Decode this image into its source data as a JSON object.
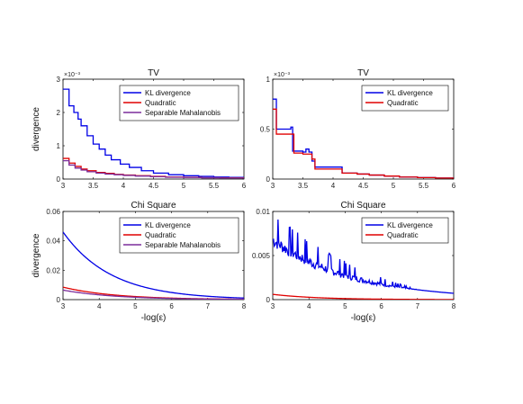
{
  "chart_data": [
    {
      "type": "line",
      "title": "TV",
      "ylabel": "divergence",
      "xlabel": "",
      "multiplier": "×10⁻³",
      "xlim": [
        3,
        6
      ],
      "ylim": [
        0,
        3
      ],
      "xticks": [
        "3",
        "3.5",
        "4",
        "4.5",
        "5",
        "5.5",
        "6"
      ],
      "yticks": [
        "0",
        "1",
        "2",
        "3"
      ],
      "legend": "top-right",
      "series": [
        {
          "name": "KL divergence",
          "color": "#0000e6",
          "step": true,
          "x": [
            3.0,
            3.1,
            3.18,
            3.25,
            3.3,
            3.4,
            3.5,
            3.6,
            3.7,
            3.8,
            3.95,
            4.1,
            4.3,
            4.5,
            4.75,
            5.0,
            5.25,
            5.5,
            5.75,
            6.0
          ],
          "y": [
            2.7,
            2.2,
            2.0,
            1.8,
            1.6,
            1.3,
            1.05,
            0.9,
            0.72,
            0.58,
            0.45,
            0.35,
            0.25,
            0.18,
            0.13,
            0.1,
            0.08,
            0.06,
            0.05,
            0.04
          ]
        },
        {
          "name": "Quadratic",
          "color": "#e00000",
          "step": true,
          "x": [
            3.0,
            3.1,
            3.2,
            3.3,
            3.4,
            3.55,
            3.7,
            3.85,
            4.0,
            4.2,
            4.45,
            4.7,
            5.0,
            5.3,
            5.6,
            6.0
          ],
          "y": [
            0.62,
            0.48,
            0.38,
            0.3,
            0.25,
            0.2,
            0.17,
            0.14,
            0.12,
            0.1,
            0.08,
            0.06,
            0.05,
            0.04,
            0.035,
            0.03
          ]
        },
        {
          "name": "Separable Mahalanobis",
          "color": "#7b2d9b",
          "step": true,
          "x": [
            3.0,
            3.1,
            3.2,
            3.3,
            3.4,
            3.55,
            3.7,
            3.85,
            4.0,
            4.2,
            4.45,
            4.7,
            5.0,
            5.3,
            5.6,
            6.0
          ],
          "y": [
            0.55,
            0.42,
            0.33,
            0.27,
            0.22,
            0.18,
            0.15,
            0.13,
            0.11,
            0.09,
            0.07,
            0.055,
            0.045,
            0.035,
            0.03,
            0.025
          ]
        }
      ]
    },
    {
      "type": "line",
      "title": "TV",
      "ylabel": "",
      "xlabel": "",
      "multiplier": "×10⁻³",
      "xlim": [
        3,
        6
      ],
      "ylim": [
        0,
        1
      ],
      "xticks": [
        "3",
        "3.5",
        "4",
        "4.5",
        "5",
        "5.5",
        "6"
      ],
      "yticks": [
        "0",
        "0.5",
        "1"
      ],
      "legend": "top-right",
      "series": [
        {
          "name": "KL divergence",
          "color": "#0000e6",
          "step": true,
          "x": [
            3.0,
            3.06,
            3.3,
            3.33,
            3.5,
            3.55,
            3.6,
            3.65,
            3.7,
            3.9,
            4.1,
            4.15,
            4.4,
            4.6,
            4.85,
            5.1,
            5.4,
            5.7,
            6.0
          ],
          "y": [
            0.8,
            0.5,
            0.52,
            0.28,
            0.27,
            0.3,
            0.27,
            0.18,
            0.12,
            0.12,
            0.12,
            0.06,
            0.05,
            0.04,
            0.03,
            0.02,
            0.015,
            0.01,
            0.01
          ]
        },
        {
          "name": "Quadratic",
          "color": "#e00000",
          "step": true,
          "x": [
            3.0,
            3.06,
            3.25,
            3.35,
            3.5,
            3.65,
            3.7,
            3.9,
            4.1,
            4.15,
            4.4,
            4.6,
            4.85,
            5.1,
            5.4,
            5.7,
            6.0
          ],
          "y": [
            0.7,
            0.45,
            0.45,
            0.26,
            0.25,
            0.2,
            0.1,
            0.1,
            0.1,
            0.06,
            0.05,
            0.04,
            0.03,
            0.02,
            0.015,
            0.01,
            0.01
          ]
        }
      ]
    },
    {
      "type": "line",
      "title": "Chi Square",
      "ylabel": "divergence",
      "xlabel": "-log(ε)",
      "xlim": [
        3,
        8
      ],
      "ylim": [
        0,
        0.06
      ],
      "xticks": [
        "3",
        "4",
        "5",
        "6",
        "7",
        "8"
      ],
      "yticks": [
        "0",
        "0.02",
        "0.04",
        "0.06"
      ],
      "legend": "top-right",
      "series": [
        {
          "name": "KL divergence",
          "color": "#0000e6",
          "decay": {
            "a": 0.046,
            "k": 0.75
          }
        },
        {
          "name": "Quadratic",
          "color": "#e00000",
          "decay": {
            "a": 0.0085,
            "k": 0.7
          }
        },
        {
          "name": "Separable Mahalanobis",
          "color": "#7b2d9b",
          "decay": {
            "a": 0.0065,
            "k": 0.7
          }
        }
      ]
    },
    {
      "type": "line",
      "title": "Chi Square",
      "ylabel": "",
      "xlabel": "-log(ε)",
      "xlim": [
        3,
        8
      ],
      "ylim": [
        0,
        0.01
      ],
      "xticks": [
        "3",
        "4",
        "5",
        "6",
        "7",
        "8"
      ],
      "yticks": [
        "0",
        "0.005",
        "0.01"
      ],
      "legend": "top-right",
      "series": [
        {
          "name": "KL divergence",
          "color": "#0000e6",
          "noisy": {
            "a": 0.0068,
            "k": 0.45,
            "amp": 0.002
          }
        },
        {
          "name": "Quadratic",
          "color": "#e00000",
          "decay": {
            "a": 0.0006,
            "k": 0.8
          }
        }
      ]
    }
  ]
}
